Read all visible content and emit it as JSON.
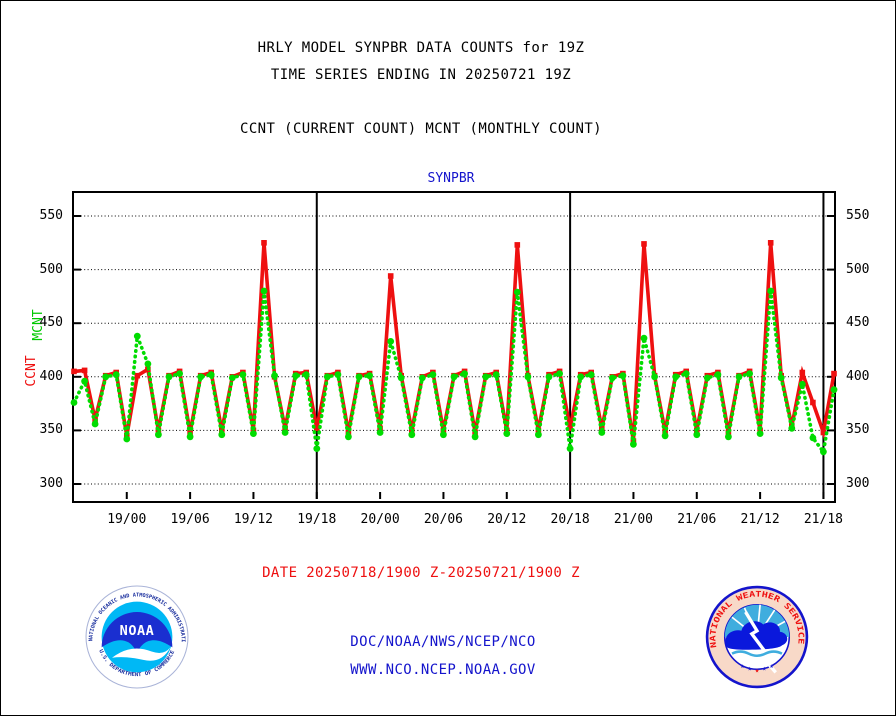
{
  "page": {
    "title_line1": "HRLY MODEL SYNPBR DATA COUNTS for 19Z",
    "title_line2": "TIME SERIES ENDING IN 20250721 19Z",
    "legend_line": "CCNT (CURRENT COUNT) MCNT (MONTHLY COUNT)"
  },
  "chart": {
    "title": "SYNPBR",
    "y_axis_label_mcnt": "MCNT",
    "y_axis_label_ccnt": "CCNT",
    "colors": {
      "ccnt": "#ee1010",
      "mcnt": "#00dc00",
      "axis": "#000000",
      "title": "#1414cc"
    }
  },
  "chart_data": {
    "type": "line",
    "title": "SYNPBR",
    "x_description": "hourly points from 20250718/1900Z (hour 0) to 20250721/1900Z (hour 72)",
    "ylim": [
      284,
      580
    ],
    "y_ticks": [
      300,
      350,
      400,
      450,
      500,
      550
    ],
    "x_tick_labels": [
      {
        "hour": 5,
        "label": "19/00"
      },
      {
        "hour": 11,
        "label": "19/06"
      },
      {
        "hour": 17,
        "label": "19/12"
      },
      {
        "hour": 23,
        "label": "19/18"
      },
      {
        "hour": 29,
        "label": "20/00"
      },
      {
        "hour": 35,
        "label": "20/06"
      },
      {
        "hour": 41,
        "label": "20/12"
      },
      {
        "hour": 47,
        "label": "20/18"
      },
      {
        "hour": 53,
        "label": "21/00"
      },
      {
        "hour": 59,
        "label": "21/06"
      },
      {
        "hour": 65,
        "label": "21/12"
      },
      {
        "hour": 71,
        "label": "21/18"
      }
    ],
    "day_separator_hours": [
      23,
      47,
      71
    ],
    "series": [
      {
        "name": "CCNT",
        "color": "#ee1010",
        "style": "solid",
        "values": [
          405,
          406,
          360,
          401,
          404,
          345,
          401,
          407,
          350,
          401,
          405,
          348,
          401,
          404,
          350,
          400,
          404,
          350,
          525,
          400,
          352,
          403,
          404,
          352,
          401,
          404,
          348,
          401,
          403,
          352,
          494,
          401,
          350,
          400,
          404,
          350,
          401,
          405,
          348,
          401,
          404,
          350,
          523,
          401,
          350,
          402,
          405,
          352,
          402,
          404,
          352,
          400,
          403,
          340,
          524,
          401,
          349,
          402,
          405,
          350,
          401,
          404,
          348,
          401,
          405,
          350,
          525,
          401,
          354,
          404,
          376,
          348,
          403
        ]
      },
      {
        "name": "MCNT",
        "color": "#00dc00",
        "style": "dotted",
        "values": [
          376,
          396,
          356,
          400,
          402,
          342,
          438,
          412,
          346,
          400,
          403,
          344,
          400,
          402,
          346,
          399,
          402,
          347,
          480,
          401,
          348,
          401,
          402,
          333,
          400,
          402,
          344,
          400,
          401,
          348,
          433,
          399,
          346,
          399,
          402,
          346,
          400,
          403,
          344,
          400,
          402,
          347,
          479,
          400,
          346,
          400,
          403,
          333,
          400,
          402,
          348,
          399,
          401,
          337,
          436,
          400,
          345,
          400,
          403,
          346,
          399,
          402,
          344,
          400,
          403,
          347,
          480,
          399,
          352,
          393,
          343,
          330,
          388
        ]
      }
    ]
  },
  "footer": {
    "date_range": "DATE 20250718/1900 Z-20250721/1900 Z",
    "org_line": "DOC/NOAA/NWS/NCEP/NCO",
    "url_line": "WWW.NCO.NCEP.NOAA.GOV"
  },
  "logos": {
    "noaa": {
      "name": "NOAA",
      "ring_top": "NATIONAL OCEANIC AND ATMOSPHERIC ADMINISTRATION",
      "ring_bottom": "U.S. DEPARTMENT OF COMMERCE"
    },
    "nws": {
      "ring": "NATIONAL WEATHER SERVICE"
    }
  }
}
